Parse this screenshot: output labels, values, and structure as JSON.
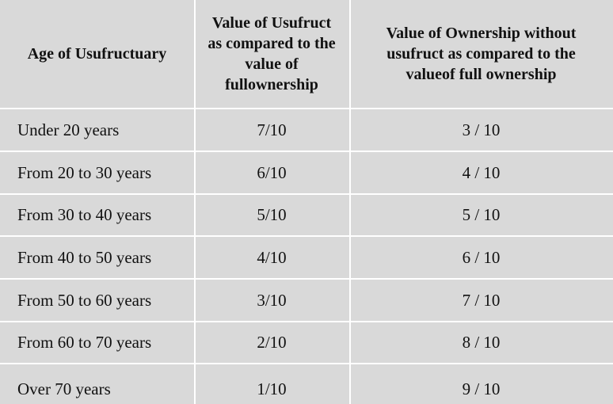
{
  "table": {
    "headers": [
      "Age of Usufructuary",
      "Value of Usufruct as compared to the value of fullownership",
      "Value of Ownership without usufruct as compared to the valueof full ownership"
    ],
    "rows": [
      [
        "Under 20 years",
        "7/10",
        "3 / 10"
      ],
      [
        "From 20 to 30 years",
        "6/10",
        "4 / 10"
      ],
      [
        "From 30 to 40 years",
        "5/10",
        "5 / 10"
      ],
      [
        "From 40 to 50 years",
        "4/10",
        "6 / 10"
      ],
      [
        "From 50 to 60 years",
        "3/10",
        "7 / 10"
      ],
      [
        "From 60 to 70 years",
        "2/10",
        "8 / 10"
      ],
      [
        "Over 70 years",
        "1/10",
        "9 / 10"
      ]
    ]
  },
  "colors": {
    "cell_background": "#d9d9d9",
    "grid_lines": "#ffffff",
    "text": "#111111"
  }
}
